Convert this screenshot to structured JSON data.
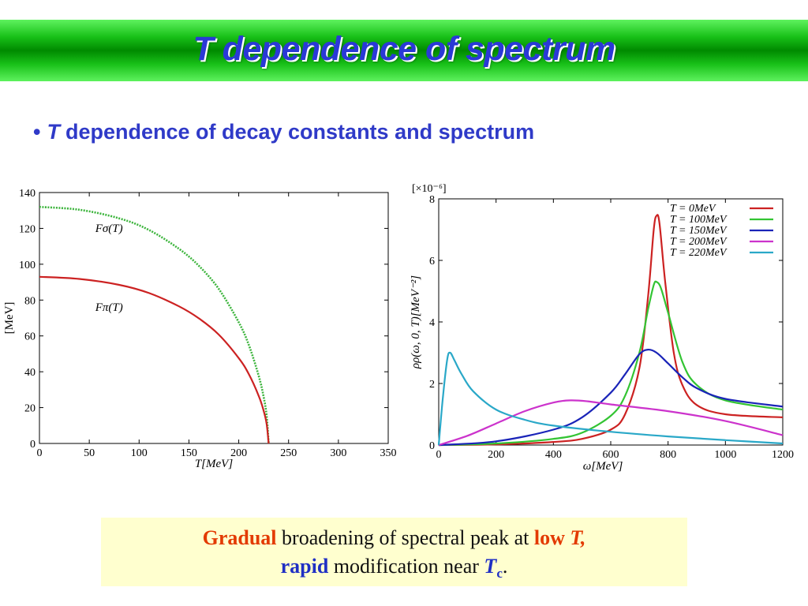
{
  "slide": {
    "title": "T dependence of spectrum",
    "bullet": {
      "marker": "•",
      "italic": "T",
      "text": "dependence of decay constants and spectrum"
    },
    "caption": {
      "line1": {
        "emph": "Gradual",
        "mid": "broadening of  spectral peak at",
        "emph2": "low",
        "var": "T,",
        "tail": ""
      },
      "line2": {
        "emph": "rapid",
        "mid": "modification near",
        "var": "T",
        "sub": "c",
        "tail": "."
      }
    },
    "colors": {
      "title_text": "#2a39d6",
      "bullet_text": "#2f3ac8",
      "emph_red": "#e33a00",
      "emph_blue": "#1f2fc4",
      "caption_bg": "#ffffcf"
    }
  },
  "chart_data": [
    {
      "type": "line",
      "xlabel": "T[MeV]",
      "ylabel": "[MeV]",
      "xlim": [
        0,
        350
      ],
      "ylim": [
        0,
        140
      ],
      "xticks": [
        0,
        50,
        100,
        150,
        200,
        250,
        300,
        350
      ],
      "yticks": [
        0,
        20,
        40,
        60,
        80,
        100,
        120,
        140
      ],
      "grid": false,
      "series": [
        {
          "name": "Fσ(T)",
          "color": "#3cb43c",
          "dashed": true,
          "points": [
            [
              0,
              132
            ],
            [
              40,
              130.4
            ],
            [
              80,
              125.6
            ],
            [
              110,
              119.1
            ],
            [
              140,
              108.6
            ],
            [
              160,
              99.1
            ],
            [
              180,
              86.2
            ],
            [
              200,
              67.6
            ],
            [
              210,
              55.1
            ],
            [
              220,
              37.8
            ],
            [
              225,
              26
            ],
            [
              228,
              15.5
            ],
            [
              230,
              0
            ]
          ]
        },
        {
          "name": "Fπ(T)",
          "color": "#cc2222",
          "dashed": false,
          "points": [
            [
              0,
              93
            ],
            [
              40,
              91.8
            ],
            [
              80,
              88.5
            ],
            [
              110,
              83.9
            ],
            [
              140,
              76.5
            ],
            [
              160,
              69.8
            ],
            [
              180,
              60.7
            ],
            [
              200,
              47.6
            ],
            [
              210,
              38.8
            ],
            [
              220,
              26.6
            ],
            [
              225,
              18.3
            ],
            [
              228,
              10.9
            ],
            [
              230,
              0
            ]
          ]
        }
      ],
      "annotations": [
        "Fσ(T)",
        "Fπ(T)"
      ]
    },
    {
      "type": "line",
      "xlabel": "ω[MeV]",
      "ylabel": "ρρ(ω, 0, T)[MeV⁻²]",
      "scale_label": "[×10⁻⁶]",
      "xlim": [
        0,
        1200
      ],
      "ylim": [
        0,
        8
      ],
      "xticks": [
        0,
        200,
        400,
        600,
        800,
        1000,
        1200
      ],
      "yticks": [
        0,
        2,
        4,
        6,
        8
      ],
      "grid": false,
      "legend": "top-right",
      "series": [
        {
          "name": "T =     0MeV",
          "color": "#cc2222",
          "points": [
            [
              0,
              0
            ],
            [
              200,
              0.02
            ],
            [
              400,
              0.1
            ],
            [
              500,
              0.2
            ],
            [
              600,
              0.5
            ],
            [
              650,
              1
            ],
            [
              700,
              2.5
            ],
            [
              730,
              4.8
            ],
            [
              750,
              7
            ],
            [
              760,
              7.45
            ],
            [
              770,
              7.2
            ],
            [
              790,
              5.3
            ],
            [
              820,
              3
            ],
            [
              850,
              1.95
            ],
            [
              900,
              1.3
            ],
            [
              1000,
              1
            ],
            [
              1200,
              0.9
            ]
          ]
        },
        {
          "name": "T = 100MeV",
          "color": "#33c433",
          "points": [
            [
              0,
              0
            ],
            [
              200,
              0.05
            ],
            [
              400,
              0.2
            ],
            [
              500,
              0.4
            ],
            [
              600,
              0.95
            ],
            [
              650,
              1.6
            ],
            [
              700,
              3
            ],
            [
              730,
              4.4
            ],
            [
              750,
              5.2
            ],
            [
              760,
              5.3
            ],
            [
              775,
              5.1
            ],
            [
              800,
              4.3
            ],
            [
              850,
              2.7
            ],
            [
              900,
              1.95
            ],
            [
              1000,
              1.45
            ],
            [
              1200,
              1.15
            ]
          ]
        },
        {
          "name": "T = 150MeV",
          "color": "#1a24b8",
          "points": [
            [
              0,
              0
            ],
            [
              200,
              0.12
            ],
            [
              400,
              0.5
            ],
            [
              500,
              0.9
            ],
            [
              600,
              1.7
            ],
            [
              650,
              2.3
            ],
            [
              700,
              2.95
            ],
            [
              730,
              3.1
            ],
            [
              760,
              3
            ],
            [
              800,
              2.65
            ],
            [
              850,
              2.2
            ],
            [
              900,
              1.85
            ],
            [
              1000,
              1.5
            ],
            [
              1200,
              1.25
            ]
          ]
        },
        {
          "name": "T = 200MeV",
          "color": "#cc33cc",
          "points": [
            [
              0,
              0
            ],
            [
              100,
              0.3
            ],
            [
              200,
              0.7
            ],
            [
              300,
              1.1
            ],
            [
              400,
              1.38
            ],
            [
              460,
              1.45
            ],
            [
              520,
              1.42
            ],
            [
              600,
              1.32
            ],
            [
              800,
              1.1
            ],
            [
              1000,
              0.78
            ],
            [
              1200,
              0.32
            ]
          ]
        },
        {
          "name": "T = 220MeV",
          "color": "#2aa8c8",
          "points": [
            [
              0,
              0
            ],
            [
              15,
              1.6
            ],
            [
              30,
              2.8
            ],
            [
              40,
              3
            ],
            [
              55,
              2.75
            ],
            [
              80,
              2.3
            ],
            [
              120,
              1.75
            ],
            [
              200,
              1.15
            ],
            [
              300,
              0.82
            ],
            [
              400,
              0.63
            ],
            [
              600,
              0.43
            ],
            [
              800,
              0.28
            ],
            [
              1000,
              0.16
            ],
            [
              1200,
              0.05
            ]
          ]
        }
      ]
    }
  ]
}
